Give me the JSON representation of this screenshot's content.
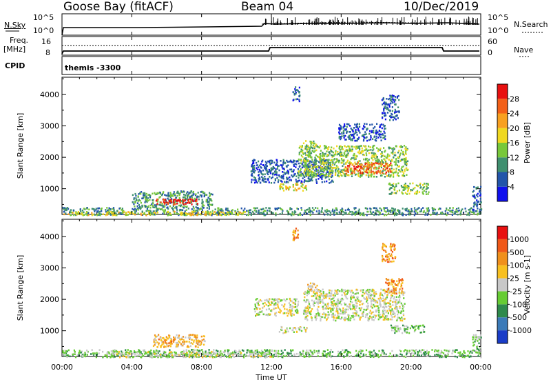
{
  "header": {
    "station": "Goose Bay (fitACF)",
    "beam": "Beam 04",
    "date": "10/Dec/2019"
  },
  "noise_panel": {
    "left_label": "N.Sky",
    "right_label": "N.Search",
    "left_ticks": [
      "10^5",
      "10^0"
    ],
    "right_ticks": [
      "10^5",
      "10^0"
    ]
  },
  "freq_panel": {
    "left_label": "Freq.",
    "left_unit": "[MHz]",
    "left_ticks": [
      "16",
      "8"
    ],
    "right_label": "Nave",
    "right_ticks": [
      "60",
      "0"
    ]
  },
  "cpid_panel": {
    "label": "CPID",
    "value": "themis -3300"
  },
  "chart_data": [
    {
      "type": "heatmap",
      "name": "power",
      "ylabel": "Slant Range [km]",
      "yticks": [
        1000,
        2000,
        3000,
        4000
      ],
      "ylim": [
        180,
        4550
      ],
      "xlim": [
        0,
        24
      ],
      "colorbar_label": "Power [dB]",
      "colorbar_ticks": [
        "28",
        "24",
        "20",
        "16",
        "12",
        "8",
        "4"
      ],
      "colors": [
        "#1010ee",
        "#2255aa",
        "#3f8f6f",
        "#78c83a",
        "#f0d820",
        "#f8a020",
        "#f36018",
        "#e81010"
      ],
      "regions": [
        {
          "x": [
            0.0,
            24.0
          ],
          "y": [
            180,
            420
          ],
          "level": 2
        },
        {
          "x": [
            0.0,
            10.5
          ],
          "y": [
            180,
            300
          ],
          "level": 4
        },
        {
          "x": [
            4.0,
            8.6
          ],
          "y": [
            420,
            950
          ],
          "level": 2
        },
        {
          "x": [
            5.3,
            7.8
          ],
          "y": [
            520,
            700
          ],
          "level": 7
        },
        {
          "x": [
            10.8,
            15.5
          ],
          "y": [
            1200,
            1950
          ],
          "level": 1
        },
        {
          "x": [
            12.4,
            14.0
          ],
          "y": [
            950,
            1200
          ],
          "level": 4
        },
        {
          "x": [
            13.5,
            19.8
          ],
          "y": [
            1400,
            2400
          ],
          "level": 3
        },
        {
          "x": [
            16.2,
            18.8
          ],
          "y": [
            1500,
            1850
          ],
          "level": 6
        },
        {
          "x": [
            13.8,
            14.6
          ],
          "y": [
            2300,
            2550
          ],
          "level": 3
        },
        {
          "x": [
            18.7,
            21.0
          ],
          "y": [
            850,
            1200
          ],
          "level": 3
        },
        {
          "x": [
            15.8,
            18.5
          ],
          "y": [
            2550,
            3100
          ],
          "level": 1
        },
        {
          "x": [
            18.3,
            19.3
          ],
          "y": [
            3200,
            4000
          ],
          "level": 1
        },
        {
          "x": [
            13.2,
            13.6
          ],
          "y": [
            3800,
            4300
          ],
          "level": 1
        },
        {
          "x": [
            23.5,
            24.0
          ],
          "y": [
            250,
            1100
          ],
          "level": 1
        }
      ]
    },
    {
      "type": "heatmap",
      "name": "velocity",
      "ylabel": "Slant Range [km]",
      "yticks": [
        1000,
        2000,
        3000,
        4000
      ],
      "ylim": [
        180,
        4550
      ],
      "xlim": [
        0,
        24
      ],
      "colorbar_label": "Velocity [m s-1]",
      "colorbar_ticks": [
        "1000",
        "500",
        "100",
        "25",
        "-25",
        "-100",
        "-500",
        "-1000"
      ],
      "colors": [
        "#1a3cc8",
        "#3b7ab8",
        "#2e8a4c",
        "#66cc33",
        "#c8c8c8",
        "#f8c020",
        "#f0901c",
        "#f05818",
        "#e81010"
      ],
      "regions": [
        {
          "x": [
            0.0,
            24.0
          ],
          "y": [
            180,
            420
          ],
          "level": 3
        },
        {
          "x": [
            2.5,
            12.0
          ],
          "y": [
            180,
            360
          ],
          "level": 4
        },
        {
          "x": [
            5.2,
            8.2
          ],
          "y": [
            500,
            900
          ],
          "level": 5
        },
        {
          "x": [
            5.5,
            6.5
          ],
          "y": [
            600,
            760
          ],
          "level": 6
        },
        {
          "x": [
            11.0,
            13.5
          ],
          "y": [
            1500,
            2050
          ],
          "level": 4
        },
        {
          "x": [
            12.4,
            14.0
          ],
          "y": [
            950,
            1150
          ],
          "level": 4
        },
        {
          "x": [
            13.8,
            19.6
          ],
          "y": [
            1350,
            2350
          ],
          "level": 4
        },
        {
          "x": [
            14.0,
            14.6
          ],
          "y": [
            2300,
            2550
          ],
          "level": 5
        },
        {
          "x": [
            18.8,
            20.8
          ],
          "y": [
            950,
            1200
          ],
          "level": 3
        },
        {
          "x": [
            18.5,
            19.5
          ],
          "y": [
            2200,
            2700
          ],
          "level": 6
        },
        {
          "x": [
            18.3,
            19.1
          ],
          "y": [
            3200,
            3800
          ],
          "level": 6
        },
        {
          "x": [
            13.2,
            13.5
          ],
          "y": [
            3900,
            4300
          ],
          "level": 6
        },
        {
          "x": [
            23.5,
            24.0
          ],
          "y": [
            300,
            900
          ],
          "level": 3
        }
      ]
    }
  ],
  "time_axis": {
    "ticks": [
      "00:00",
      "04:00",
      "08:00",
      "12:00",
      "16:00",
      "20:00",
      "00:00"
    ],
    "xlabel": "Time UT"
  }
}
